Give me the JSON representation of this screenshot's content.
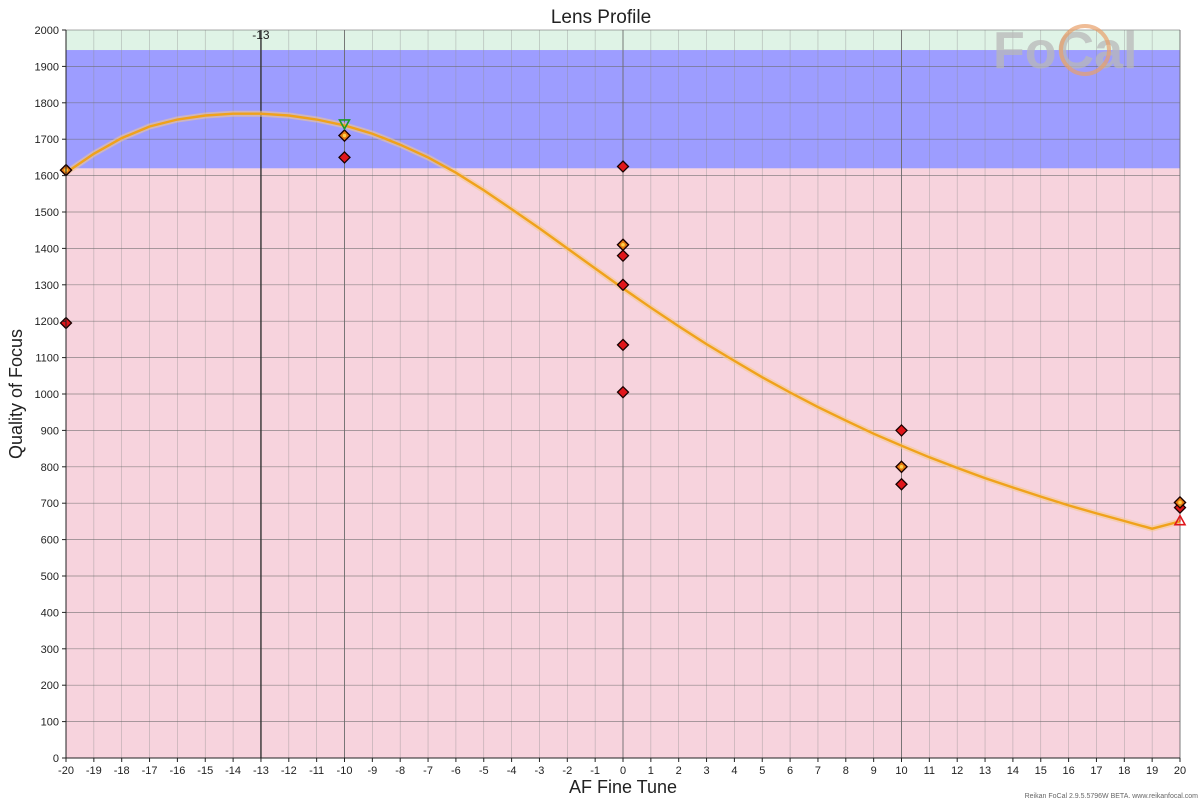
{
  "chart_data": {
    "type": "scatter",
    "title": "Lens Profile",
    "xlabel": "AF Fine Tune",
    "ylabel": "Quality of Focus",
    "xlim": [
      -20,
      20
    ],
    "ylim": [
      0,
      2000
    ],
    "x_ticks": [
      -20,
      -19,
      -18,
      -17,
      -16,
      -15,
      -14,
      -13,
      -12,
      -11,
      -10,
      -9,
      -8,
      -7,
      -6,
      -5,
      -4,
      -3,
      -2,
      -1,
      0,
      1,
      2,
      3,
      4,
      5,
      6,
      7,
      8,
      9,
      10,
      11,
      12,
      13,
      14,
      15,
      16,
      17,
      18,
      19,
      20
    ],
    "y_ticks": [
      0,
      100,
      200,
      300,
      400,
      500,
      600,
      700,
      800,
      900,
      1000,
      1100,
      1200,
      1300,
      1400,
      1500,
      1600,
      1700,
      1800,
      1900,
      2000
    ],
    "grid": true,
    "bands": [
      {
        "y_from": 0,
        "y_to": 1620,
        "color": "#f7d3dd"
      },
      {
        "y_from": 1620,
        "y_to": 1945,
        "color": "#9d9dff"
      },
      {
        "y_from": 1945,
        "y_to": 2000,
        "color": "#dff3e6"
      }
    ],
    "series": [
      {
        "marker": "diamond",
        "color": "#e0161b",
        "points": [
          {
            "x": -20,
            "y": 1615
          },
          {
            "x": -20,
            "y": 1195
          },
          {
            "x": -10,
            "y": 1710
          },
          {
            "x": -10,
            "y": 1650
          },
          {
            "x": 0,
            "y": 1625
          },
          {
            "x": 0,
            "y": 1410
          },
          {
            "x": 0,
            "y": 1380
          },
          {
            "x": 0,
            "y": 1300
          },
          {
            "x": 0,
            "y": 1135
          },
          {
            "x": 0,
            "y": 1005
          },
          {
            "x": 10,
            "y": 900
          },
          {
            "x": 10,
            "y": 800
          },
          {
            "x": 10,
            "y": 752
          },
          {
            "x": 20,
            "y": 702
          },
          {
            "x": 20,
            "y": 688
          }
        ]
      },
      {
        "marker": "dotted-diamond",
        "color": "#e0161b",
        "points": [
          {
            "x": -20,
            "y": 1615
          },
          {
            "x": -10,
            "y": 1710
          },
          {
            "x": 0,
            "y": 1410
          },
          {
            "x": 10,
            "y": 800
          },
          {
            "x": 20,
            "y": 702
          }
        ]
      },
      {
        "type": "line",
        "color": "#f0a21b",
        "x": [
          -20,
          -19,
          -18,
          -17,
          -16,
          -15,
          -14,
          -13,
          -12,
          -11,
          -10,
          -9,
          -8,
          -7,
          -6,
          -5,
          -4,
          -3,
          -2,
          -1,
          0,
          1,
          2,
          3,
          4,
          5,
          6,
          7,
          8,
          9,
          10,
          11,
          12,
          13,
          14,
          15,
          16,
          17,
          18,
          19,
          20
        ],
        "y": [
          1608,
          1660,
          1703,
          1735,
          1754,
          1765,
          1770,
          1770,
          1765,
          1754,
          1738,
          1715,
          1685,
          1650,
          1608,
          1560,
          1508,
          1455,
          1400,
          1345,
          1290,
          1237,
          1186,
          1137,
          1091,
          1046,
          1004,
          964,
          927,
          891,
          858,
          826,
          797,
          769,
          743,
          718,
          694,
          672,
          651,
          630,
          650
        ]
      },
      {
        "marker": "triangle-down",
        "color": "#1a9a2a",
        "points": [
          {
            "x": -10,
            "y": 1742
          }
        ]
      },
      {
        "marker": "triangle-up",
        "color": "#e0161b",
        "points": [
          {
            "x": 20,
            "y": 652
          }
        ]
      }
    ],
    "marker_line": {
      "x": -13,
      "label": "-13"
    },
    "logo": "FoCal",
    "credit": "Reikan FoCal 2.9.5.5796W BETA. www.reikanfocal.com"
  }
}
